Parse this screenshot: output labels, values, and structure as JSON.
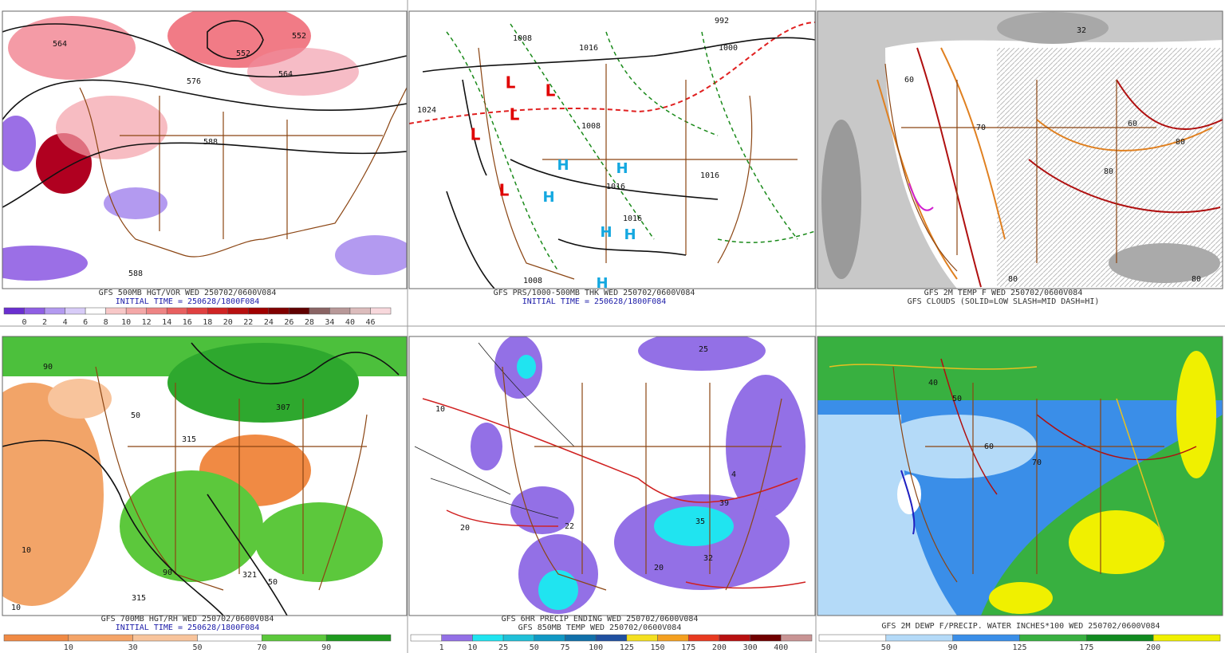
{
  "panels": [
    {
      "captions": [
        "GFS 500MB HGT/VOR WED 250702/0600V084",
        "INITIAL TIME = 250628/1800F084"
      ],
      "map_labels": [
        "564",
        "552",
        "552",
        "564",
        "576",
        "588",
        "588"
      ],
      "colorbar": {
        "colors": [
          "#6a2fd0",
          "#8f5fe4",
          "#b39af0",
          "#d8ccf8",
          "#ffffff",
          "#f8c8c8",
          "#f4a8a8",
          "#ee8484",
          "#e86060",
          "#e04040",
          "#d02424",
          "#b81010",
          "#a00000",
          "#800000",
          "#600000",
          "#8a6464",
          "#b89898",
          "#dcbcbc",
          "#f8d8dc"
        ],
        "labels": [
          0,
          2,
          4,
          6,
          8,
          10,
          12,
          14,
          16,
          18,
          20,
          22,
          24,
          26,
          28,
          34,
          40,
          46
        ]
      }
    },
    {
      "captions": [
        "GFS PRS/1000-500MB THK WED 250702/0600V084",
        "INITIAL TIME = 250628/1800F084"
      ],
      "map_labels": [
        "992",
        "1000",
        "1008",
        "1016",
        "1024",
        "1008",
        "1016",
        "1016",
        "1016",
        "1008",
        "L",
        "L",
        "L",
        "L",
        "L",
        "H",
        "H",
        "H",
        "H",
        "H",
        "H"
      ]
    },
    {
      "captions": [
        "GFS 2M TEMP F WED 250702/0600V084",
        "GFS CLOUDS (SOLID=LOW SLASH=MID DASH=HI)"
      ],
      "map_labels": [
        "32",
        "60",
        "70",
        "80",
        "80",
        "80",
        "80",
        "60"
      ]
    },
    {
      "captions": [
        "GFS 700MB HGT/RH WED 250702/0600V084",
        "INITIAL TIME = 250628/1800F084"
      ],
      "map_labels": [
        "307",
        "315",
        "315",
        "321",
        "50",
        "50",
        "90",
        "90",
        "10",
        "10"
      ],
      "colorbar": {
        "colors": [
          "#f08a44",
          "#f4a468",
          "#f8c49c",
          "#ffffff",
          "#5cc83c",
          "#1e9a1e"
        ],
        "labels": [
          10,
          30,
          50,
          70,
          90
        ]
      }
    },
    {
      "captions": [
        "GFS 6HR PRECIP ENDING WED 250702/0600V084",
        "GFS 850MB TEMP WED 250702/0600V084"
      ],
      "map_labels": [
        "10",
        "20",
        "20",
        "22",
        "32",
        "39",
        "35",
        "4",
        "25"
      ],
      "colorbar": {
        "colors": [
          "#ffffff",
          "#9370e6",
          "#20e4f0",
          "#20c0d8",
          "#1098c4",
          "#1070aa",
          "#2050a0",
          "#f4e020",
          "#f4a020",
          "#e83a20",
          "#b81010",
          "#700000",
          "#c89494"
        ],
        "labels": [
          1,
          10,
          25,
          50,
          75,
          100,
          125,
          150,
          175,
          200,
          300,
          400
        ]
      }
    },
    {
      "captions": [
        "GFS 2M DEWP F/PRECIP. WATER INCHES*100 WED 250702/0600V084"
      ],
      "map_labels": [
        "40",
        "50",
        "60",
        "70"
      ],
      "colorbar": {
        "colors": [
          "#ffffff",
          "#b4daf8",
          "#3a8ee8",
          "#38b040",
          "#108a20",
          "#f0f000"
        ],
        "labels": [
          50,
          90,
          125,
          175,
          200
        ]
      }
    }
  ]
}
